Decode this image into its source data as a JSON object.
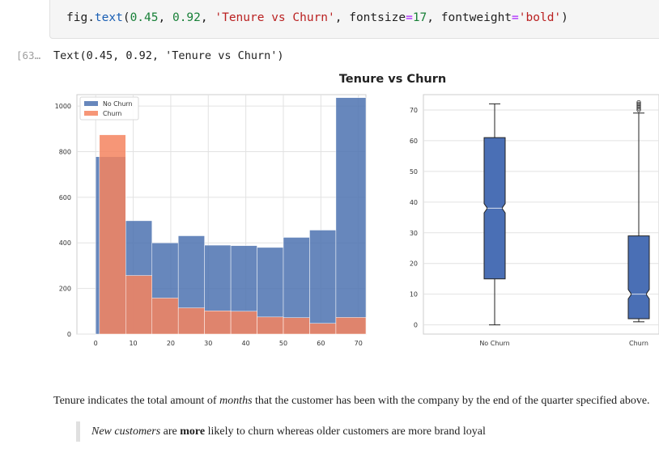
{
  "notebook": {
    "code_cell": {
      "prefix": "fig.",
      "fn": "text",
      "open": "(",
      "x": "0.45",
      "sep1": ", ",
      "y": "0.92",
      "sep2": ", ",
      "str": "'Tenure vs Churn'",
      "sep3": ", fontsize",
      "eq1": "=",
      "size": "17",
      "sep4": ", fontweight",
      "eq2": "=",
      "weight": "'bold'",
      "close": ")"
    },
    "output_prompt": "[63…",
    "output_text": "Text(0.45, 0.92, 'Tenure vs Churn')",
    "markdown": {
      "p1_a": "Tenure indicates the total amount of ",
      "p1_em": "months",
      "p1_b": " that the customer has been with the company by the end of the quarter specified above.",
      "q_em": "New customers",
      "q_a": " are ",
      "q_strong": "more",
      "q_b": " likely to churn whereas older customers are more brand loyal"
    }
  },
  "chart_data": [
    {
      "type": "bar",
      "title": "Tenure vs Churn",
      "colors": {
        "No Churn": "#4c72b0",
        "Churn": "#f4845f"
      },
      "legend": [
        "No Churn",
        "Churn"
      ],
      "legend_position": "top-left",
      "x_ticks": [
        0,
        10,
        20,
        30,
        40,
        50,
        60,
        70
      ],
      "y_ticks": [
        0,
        200,
        400,
        600,
        800,
        1000
      ],
      "xlim": [
        -5,
        72
      ],
      "ylim": [
        0,
        1050
      ],
      "grid": true,
      "series": [
        {
          "name": "No Churn",
          "bins": [
            [
              0,
              8
            ],
            [
              8,
              15
            ],
            [
              15,
              22
            ],
            [
              22,
              29
            ],
            [
              29,
              36
            ],
            [
              36,
              43
            ],
            [
              43,
              50
            ],
            [
              50,
              57
            ],
            [
              57,
              64
            ],
            [
              64,
              72
            ]
          ],
          "values": [
            778,
            497,
            400,
            431,
            390,
            388,
            380,
            424,
            456,
            1037
          ]
        },
        {
          "name": "Churn",
          "bins": [
            [
              1,
              8
            ],
            [
              8,
              15
            ],
            [
              15,
              22
            ],
            [
              22,
              29
            ],
            [
              29,
              36
            ],
            [
              36,
              43
            ],
            [
              43,
              50
            ],
            [
              50,
              57
            ],
            [
              57,
              64
            ],
            [
              64,
              72
            ]
          ],
          "values": [
            874,
            257,
            158,
            115,
            102,
            100,
            75,
            72,
            47,
            73
          ]
        }
      ]
    },
    {
      "type": "box",
      "categories": [
        "No Churn",
        "Churn"
      ],
      "y_ticks": [
        0,
        10,
        20,
        30,
        40,
        50,
        60,
        70
      ],
      "ylim": [
        -3,
        75
      ],
      "grid": true,
      "boxes": [
        {
          "name": "No Churn",
          "whisker_low": 0,
          "q1": 15,
          "median": 38,
          "q3": 61,
          "whisker_high": 72,
          "notch_low": 36.5,
          "notch_high": 39.5,
          "outliers": []
        },
        {
          "name": "Churn",
          "whisker_low": 1,
          "q1": 2,
          "median": 10,
          "q3": 29,
          "whisker_high": 69,
          "notch_low": 8.5,
          "notch_high": 11.5,
          "outliers": [
            70,
            70.5,
            71,
            71.5,
            72,
            72.5
          ]
        }
      ]
    }
  ]
}
